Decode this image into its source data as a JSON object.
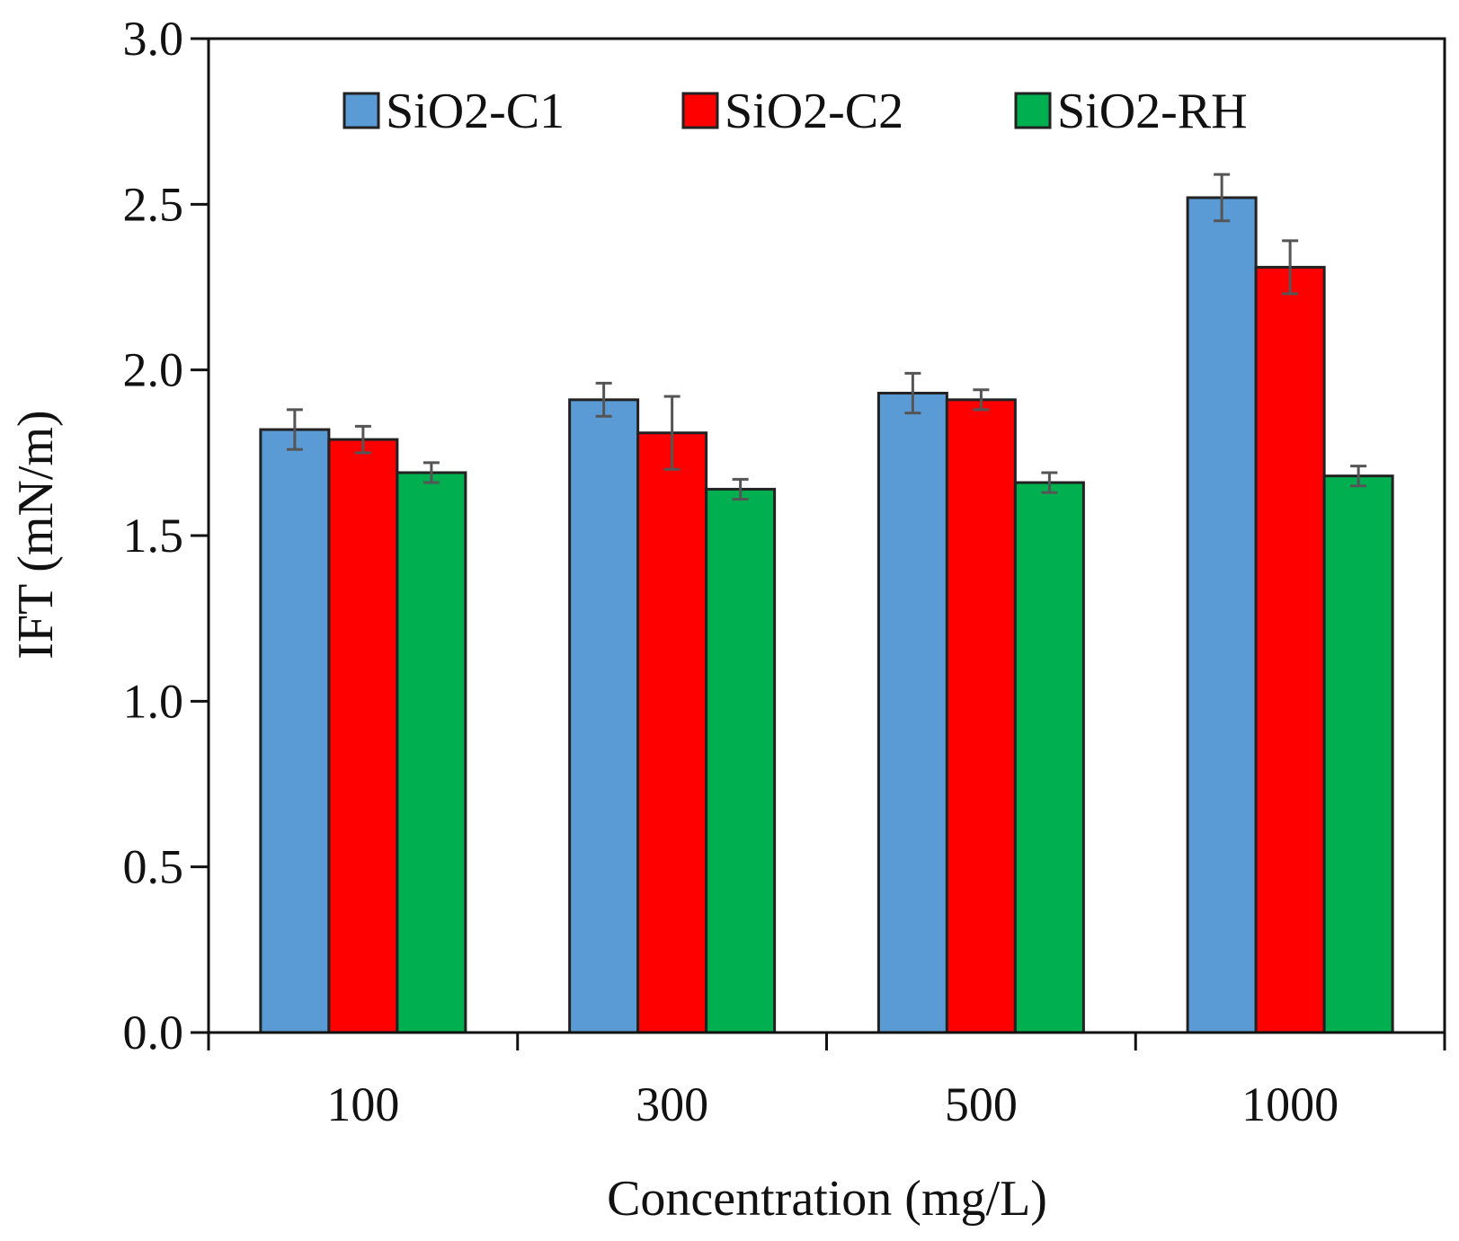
{
  "chart_data": {
    "type": "bar",
    "title": "",
    "xlabel": "Concentration (mg/L)",
    "ylabel": "IFT (mN/m)",
    "ylim": [
      0,
      3.0
    ],
    "yticks": [
      "0.0",
      "0.5",
      "1.0",
      "1.5",
      "2.0",
      "2.5",
      "3.0"
    ],
    "categories": [
      "100",
      "300",
      "500",
      "1000"
    ],
    "legend_position": "top-center",
    "series": [
      {
        "name": "SiO2-C1",
        "color": "#5b9bd5",
        "values": [
          1.82,
          1.91,
          1.93,
          2.52
        ],
        "errors": [
          0.06,
          0.05,
          0.06,
          0.07
        ]
      },
      {
        "name": "SiO2-C2",
        "color": "#ff0000",
        "values": [
          1.79,
          1.81,
          1.91,
          2.31
        ],
        "errors": [
          0.04,
          0.11,
          0.03,
          0.08
        ]
      },
      {
        "name": "SiO2-RH",
        "color": "#00b050",
        "values": [
          1.69,
          1.64,
          1.66,
          1.68
        ],
        "errors": [
          0.03,
          0.03,
          0.03,
          0.03
        ]
      }
    ]
  }
}
